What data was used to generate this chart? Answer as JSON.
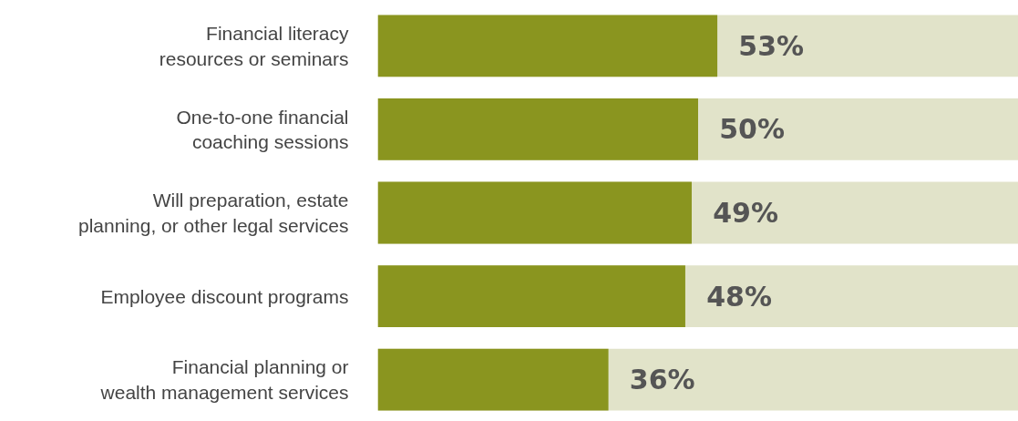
{
  "chart_data": {
    "type": "bar",
    "orientation": "horizontal",
    "categories": [
      "Financial literacy resources or seminars",
      "One-to-one financial coaching sessions",
      "Will preparation, estate planning, or other legal services",
      "Employee discount programs",
      "Financial planning or wealth management services"
    ],
    "series": [
      {
        "color": "#8a951f",
        "values": [
          53,
          50,
          49,
          48,
          36
        ],
        "value_labels": [
          "53%",
          "50%",
          "49%",
          "48%",
          "36%"
        ]
      }
    ],
    "bands": [
      {
        "axis": "x",
        "from": 0,
        "to": 100,
        "color": "#e1e3c9"
      }
    ],
    "xlim": [
      0,
      100
    ],
    "tick_labels": "y",
    "grid": false
  }
}
